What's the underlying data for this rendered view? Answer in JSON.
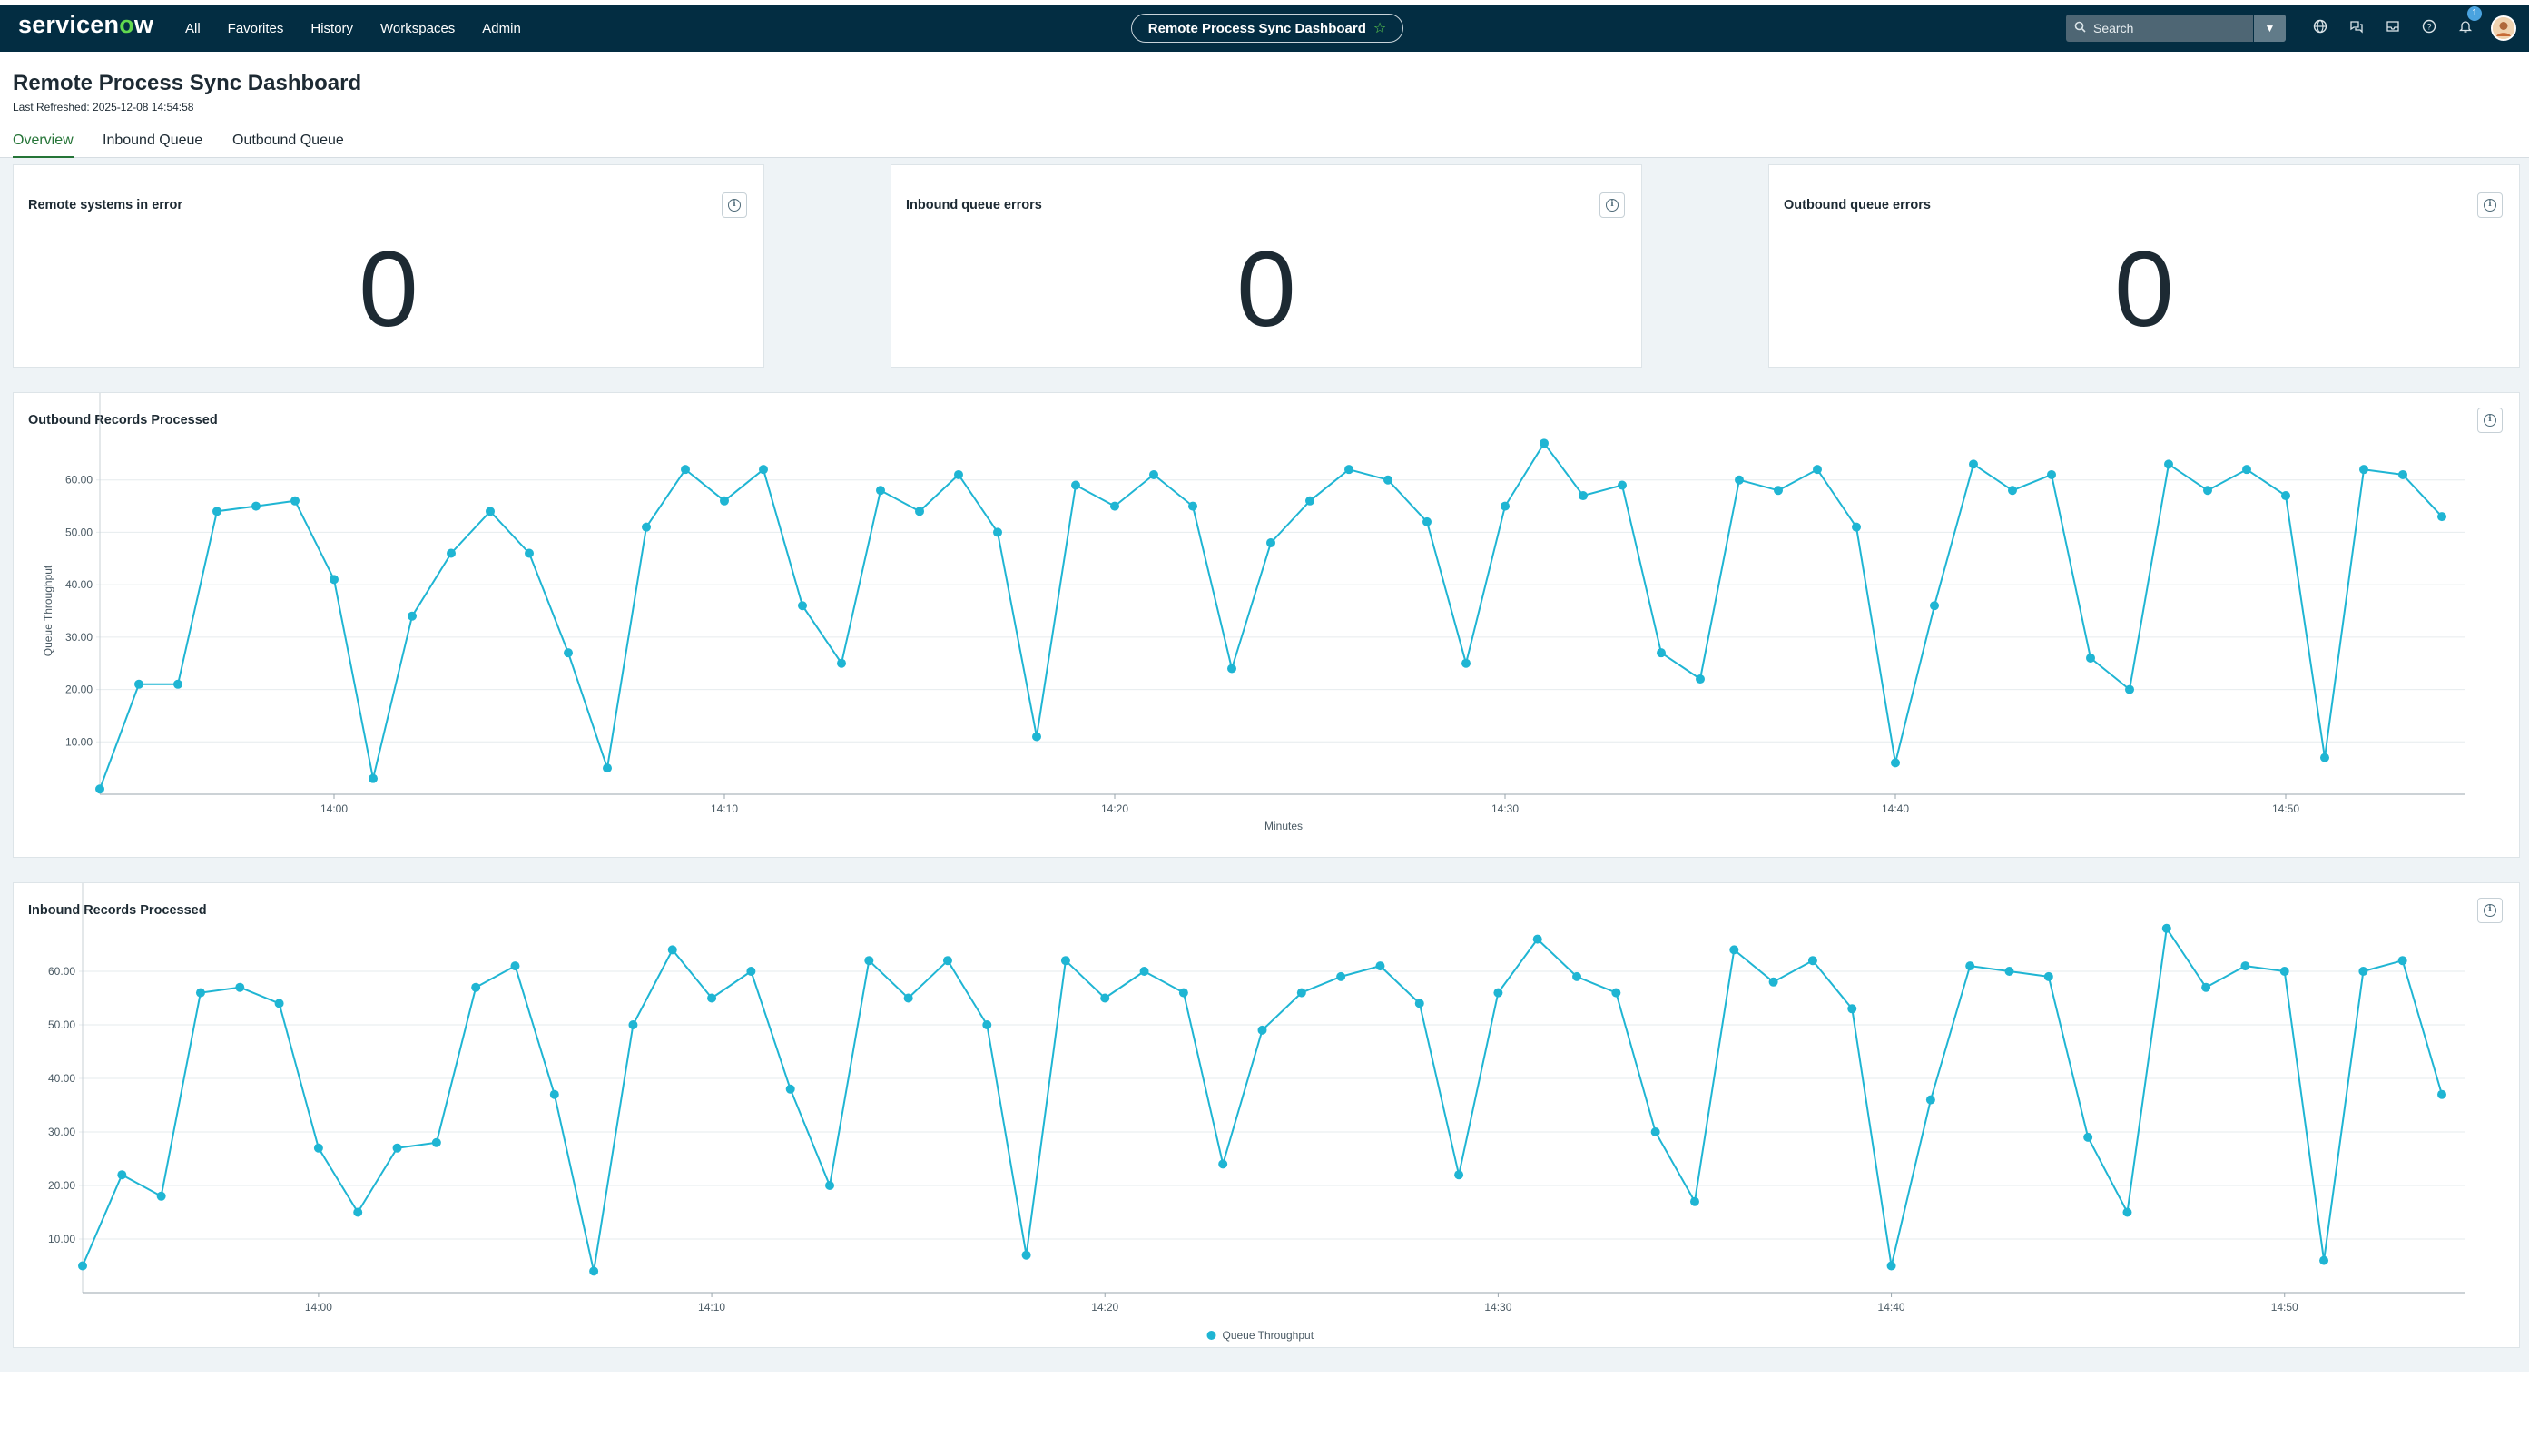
{
  "nav": {
    "logo_prefix": "servicen",
    "logo_o": "o",
    "logo_suffix": "w",
    "links": [
      "All",
      "Favorites",
      "History",
      "Workspaces",
      "Admin"
    ],
    "current_page": "Remote Process Sync Dashboard",
    "search_placeholder": "Search",
    "notification_count": "1",
    "icons": [
      "globe-icon",
      "chat-icon",
      "inbox-icon",
      "help-icon",
      "bell-icon",
      "avatar"
    ]
  },
  "header": {
    "title": "Remote Process Sync Dashboard",
    "last_refreshed": "Last Refreshed: 2025-12-08 14:54:58"
  },
  "tabs": [
    {
      "label": "Overview",
      "active": true
    },
    {
      "label": "Inbound Queue",
      "active": false
    },
    {
      "label": "Outbound Queue",
      "active": false
    }
  ],
  "kpis": [
    {
      "title": "Remote systems in error",
      "value": "0"
    },
    {
      "title": "Inbound queue errors",
      "value": "0"
    },
    {
      "title": "Outbound queue errors",
      "value": "0"
    }
  ],
  "colors": {
    "series": "#1fb5d3",
    "grid": "#e6ebee"
  },
  "chart_data": [
    {
      "type": "line",
      "title": "Outbound Records Processed",
      "xlabel": "Minutes",
      "ylabel": "Queue Throughput",
      "x_start": "13:54",
      "x_step_minutes": 1,
      "x_ticks": [
        "14:00",
        "14:10",
        "14:20",
        "14:30",
        "14:40",
        "14:50"
      ],
      "y_ticks": [
        "10.00",
        "20.00",
        "30.00",
        "40.00",
        "50.00",
        "60.00"
      ],
      "ylim": [
        0,
        70
      ],
      "series": [
        {
          "values": [
            1,
            21,
            21,
            54,
            55,
            56,
            41,
            3,
            34,
            46,
            54,
            46,
            27,
            5,
            51,
            62,
            56,
            62,
            36,
            25,
            58,
            54,
            61,
            50,
            11,
            59,
            55,
            61,
            55,
            24,
            48,
            56,
            62,
            60,
            52,
            25,
            55,
            67,
            57,
            59,
            27,
            22,
            60,
            58,
            62,
            51,
            6,
            36,
            63,
            58,
            61,
            26,
            20,
            63,
            58,
            62,
            57,
            7,
            62,
            61,
            53
          ]
        }
      ],
      "legend": null
    },
    {
      "type": "line",
      "title": "Inbound Records Processed",
      "x_start": "13:54",
      "x_step_minutes": 1,
      "x_ticks": [
        "14:00",
        "14:10",
        "14:20",
        "14:30",
        "14:40",
        "14:50"
      ],
      "y_ticks": [
        "10.00",
        "20.00",
        "30.00",
        "40.00",
        "50.00",
        "60.00"
      ],
      "ylim": [
        0,
        70
      ],
      "series": [
        {
          "name": "Queue Throughput",
          "values": [
            5,
            22,
            18,
            56,
            57,
            54,
            27,
            15,
            27,
            28,
            57,
            61,
            37,
            4,
            50,
            64,
            55,
            60,
            38,
            20,
            62,
            55,
            62,
            50,
            7,
            62,
            55,
            60,
            56,
            24,
            49,
            56,
            59,
            61,
            54,
            22,
            56,
            66,
            59,
            56,
            30,
            17,
            64,
            58,
            62,
            53,
            5,
            36,
            61,
            60,
            59,
            29,
            15,
            68,
            57,
            61,
            60,
            6,
            60,
            62,
            37
          ]
        }
      ],
      "legend": "bottom-center"
    }
  ]
}
